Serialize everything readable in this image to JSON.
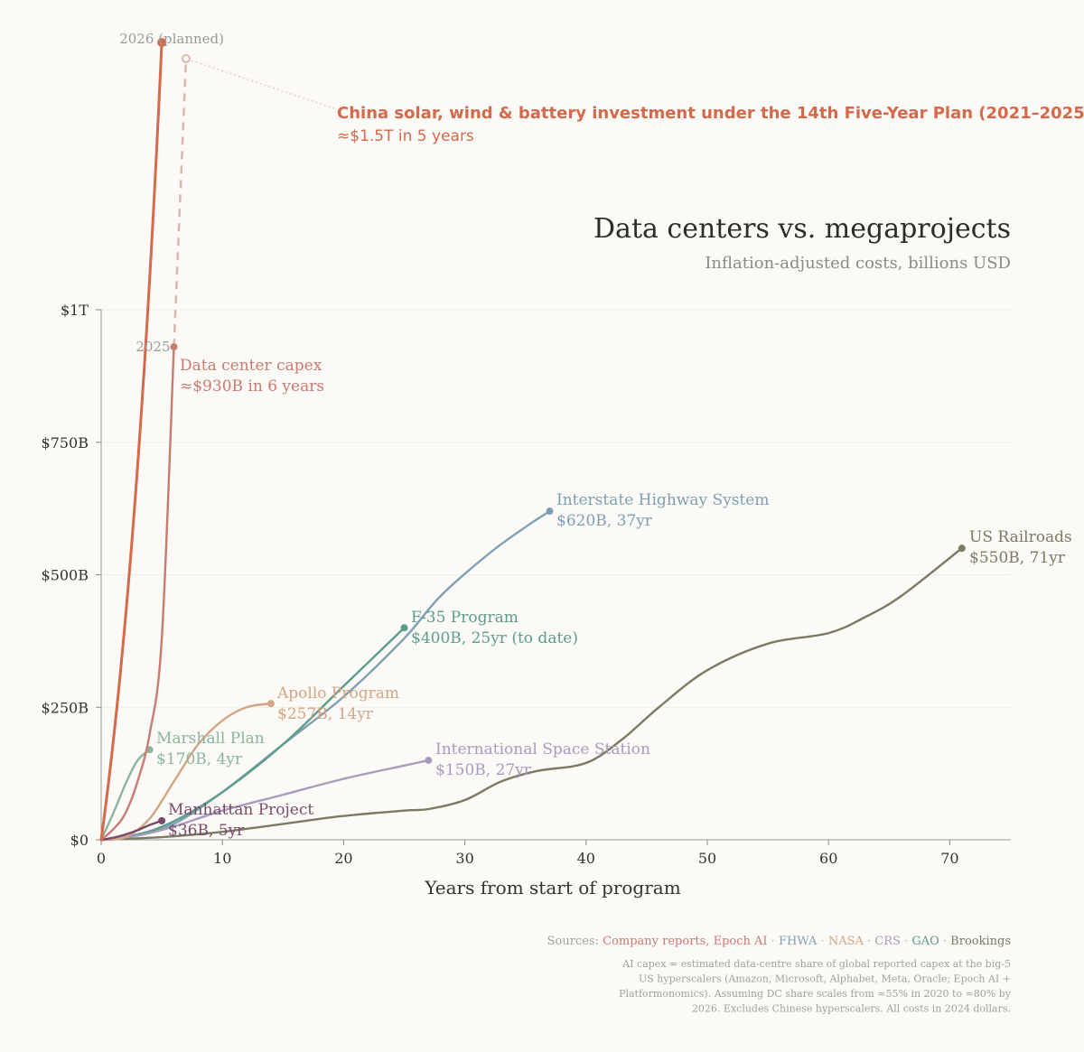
{
  "chart_data": {
    "type": "line",
    "title": "Data centers vs. megaprojects",
    "subtitle": "Inflation-adjusted costs, billions USD",
    "xlabel": "Years from start of program",
    "ylabel": "",
    "xlim": [
      0,
      75
    ],
    "ylim": [
      0,
      1000
    ],
    "x_ticks": [
      0,
      10,
      20,
      30,
      40,
      50,
      60,
      70
    ],
    "y_ticks": [
      {
        "value": 0,
        "label": "$0"
      },
      {
        "value": 250,
        "label": "$250B"
      },
      {
        "value": 500,
        "label": "$500B"
      },
      {
        "value": 750,
        "label": "$750B"
      },
      {
        "value": 1000,
        "label": "$1T"
      }
    ],
    "series": [
      {
        "name": "US Railroads",
        "color": "#7b7b63",
        "label": [
          "US Railroads",
          "$550B, 71yr"
        ],
        "x": [
          0,
          5,
          10,
          15,
          20,
          25,
          27,
          30,
          33,
          36,
          40,
          43,
          46,
          50,
          55,
          60,
          63,
          66,
          71
        ],
        "y": [
          0,
          5,
          15,
          30,
          45,
          55,
          58,
          75,
          110,
          130,
          145,
          190,
          250,
          320,
          370,
          390,
          420,
          460,
          550
        ]
      },
      {
        "name": "Interstate Highway System",
        "color": "#7fa0b4",
        "label": [
          "Interstate Highway System",
          "$620B, 37yr"
        ],
        "x": [
          0,
          3,
          6,
          10,
          15,
          20,
          25,
          28,
          32,
          35,
          37
        ],
        "y": [
          0,
          10,
          30,
          90,
          180,
          270,
          380,
          460,
          540,
          590,
          620
        ]
      },
      {
        "name": "F-35 Program",
        "color": "#5e9c8e",
        "label": [
          "F-35 Program",
          "$400B, 25yr (to date)"
        ],
        "x": [
          0,
          3,
          6,
          10,
          15,
          20,
          25
        ],
        "y": [
          0,
          10,
          35,
          90,
          180,
          290,
          400
        ]
      },
      {
        "name": "International Space Station",
        "color": "#a79bbf",
        "label": [
          "International Space Station",
          "$150B, 27yr"
        ],
        "x": [
          0,
          3,
          6,
          10,
          15,
          20,
          25,
          27
        ],
        "y": [
          0,
          8,
          25,
          55,
          85,
          115,
          140,
          150
        ]
      },
      {
        "name": "Apollo Program",
        "color": "#d3a583",
        "label": [
          "Apollo Program",
          "$257B, 14yr"
        ],
        "x": [
          0,
          2,
          4,
          6,
          8,
          10,
          12,
          14
        ],
        "y": [
          0,
          5,
          40,
          110,
          180,
          225,
          250,
          257
        ]
      },
      {
        "name": "Marshall Plan",
        "color": "#8cb69b",
        "label": [
          "Marshall Plan",
          "$170B, 4yr"
        ],
        "x": [
          0,
          1,
          2,
          3,
          4
        ],
        "y": [
          0,
          50,
          105,
          150,
          170
        ]
      },
      {
        "name": "Manhattan Project",
        "color": "#7a4a6a",
        "label": [
          "Manhattan Project",
          "$36B, 5yr"
        ],
        "x": [
          0,
          1,
          2,
          3,
          4,
          5
        ],
        "y": [
          0,
          4,
          10,
          18,
          28,
          36
        ]
      },
      {
        "name": "Data center capex",
        "color": "#c97a72",
        "label": [
          "Data center capex",
          "≈$930B in 6 years"
        ],
        "x": [
          0,
          1,
          2,
          3,
          4,
          5,
          6
        ],
        "y": [
          0,
          20,
          50,
          110,
          200,
          380,
          930
        ],
        "end_tag": "2025"
      },
      {
        "name": "China solar, wind & battery investment",
        "color": "#d4694c",
        "label": [
          "China solar, wind & battery investment under the 14th Five-Year Plan (2021–2025)",
          "≈$1.5T in 5 years"
        ],
        "x": [
          0,
          5
        ],
        "y": [
          0,
          1500
        ],
        "end_tag": "2026 (planned)"
      }
    ],
    "projection": {
      "from_series": "Data center capex",
      "x": [
        6,
        7
      ],
      "y": [
        930,
        1480
      ],
      "style": "dashed"
    },
    "sources": [
      "Sources:",
      "Company reports, Epoch AI",
      "FHWA",
      "NASA",
      "CRS",
      "GAO",
      "Brookings"
    ],
    "source_colors": [
      "#a0a0a0",
      "#c97a72",
      "#7fa0b4",
      "#d3a583",
      "#a79bbf",
      "#5e9c8e",
      "#7b7b63"
    ],
    "note_lines": [
      "AI capex = estimated data-centre share of global reported capex at the big-5",
      "US hyperscalers (Amazon, Microsoft, Alphabet, Meta, Oracle; Epoch AI +",
      "Platformonomics). Assuming DC share scales from ≈55% in 2020 to ≈80% by",
      "2026. Excludes Chinese hyperscalers. All costs in 2024 dollars."
    ]
  }
}
